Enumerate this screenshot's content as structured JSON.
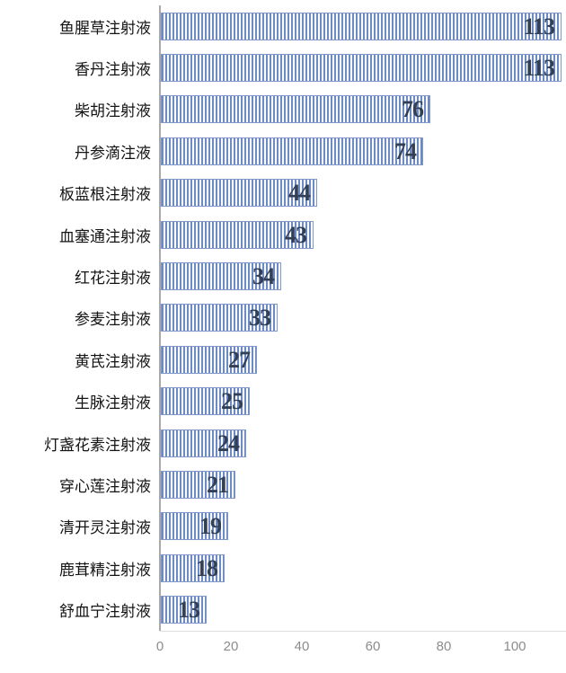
{
  "chart_data": {
    "type": "bar",
    "orientation": "horizontal",
    "title": "",
    "xlabel": "",
    "ylabel": "",
    "categories": [
      "鱼腥草注射液",
      "香丹注射液",
      "柴胡注射液",
      "丹参滴注液",
      "板蓝根注射液",
      "血塞通注射液",
      "红花注射液",
      "参麦注射液",
      "黄芪注射液",
      "生脉注射液",
      "灯盏花素注射液",
      "穿心莲注射液",
      "清开灵注射液",
      "鹿茸精注射液",
      "舒血宁注射液"
    ],
    "values": [
      113,
      113,
      76,
      74,
      44,
      43,
      34,
      33,
      27,
      25,
      24,
      21,
      19,
      18,
      13
    ],
    "value_labels_shown": true,
    "xlim": [
      0,
      114
    ],
    "x_ticks": [
      0,
      20,
      40,
      60,
      80,
      100
    ],
    "grid": false,
    "legend": "none",
    "colors": {
      "bar_stripe": "#6c8bc4",
      "bar_stripe_bg": "#fcfdfe",
      "bar_border": "#7e99c9",
      "value_label": "#333f54",
      "category_label": "#141414",
      "tick_label": "#8c8c8c",
      "y_axis_line": "#a9a9a9",
      "x_baseline": "#dcdcdc"
    }
  }
}
